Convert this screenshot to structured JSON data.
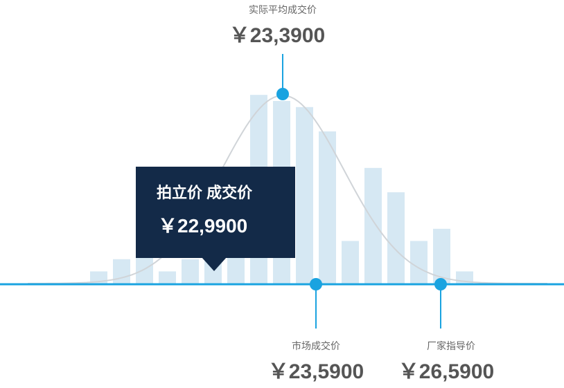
{
  "chart_data": {
    "type": "bar",
    "bars": [
      2,
      4,
      6,
      2,
      4,
      8,
      17,
      31,
      30,
      29,
      25,
      7,
      19,
      15,
      7,
      9,
      2
    ],
    "distribution_curve": true,
    "colors": {
      "bar": "#d6e8f3",
      "curve": "#d0d4d8",
      "baseline": "#1aa3e0",
      "marker": "#1aa3e0",
      "tooltip_bg": "#132a48"
    },
    "annotations": [
      {
        "id": "actual",
        "label": "实际平均成交价",
        "value": "￥23,3900"
      },
      {
        "id": "market",
        "label": "市场成交价",
        "value": "￥23,5900"
      },
      {
        "id": "msrp",
        "label": "厂家指导价",
        "value": "￥26,5900"
      }
    ],
    "tooltip": {
      "title": "拍立价 成交价",
      "value": "￥22,9900"
    }
  }
}
